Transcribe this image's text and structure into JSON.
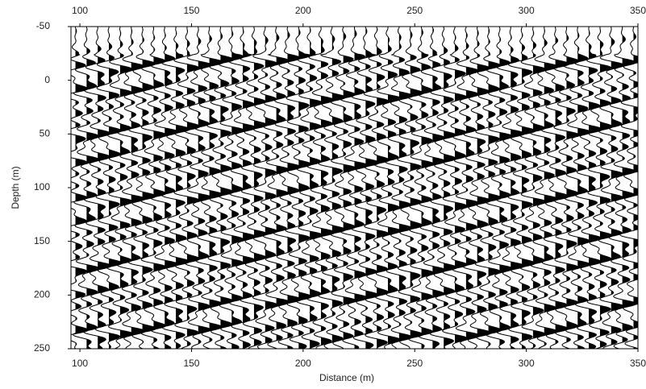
{
  "chart_data": {
    "type": "seismic-wiggle",
    "xlabel": "Distance (m)",
    "ylabel": "Depth (m)",
    "x": [
      98,
      103,
      108,
      113,
      118,
      123,
      128,
      133,
      138,
      143,
      148,
      153,
      158,
      163,
      168,
      173,
      178,
      183,
      188,
      193,
      198,
      203,
      208,
      213,
      218,
      223,
      228,
      233,
      238,
      243,
      248,
      253,
      258,
      263,
      268,
      273,
      278,
      283,
      288,
      293,
      298,
      303,
      308,
      313,
      318,
      323,
      328,
      333,
      338,
      343,
      348
    ],
    "xlim": [
      96,
      350
    ],
    "xticks": [
      100,
      150,
      200,
      250,
      300,
      350
    ],
    "ylim": [
      -50,
      250
    ],
    "yticks": [
      -50,
      0,
      50,
      100,
      150,
      200,
      250
    ],
    "color": "#000000"
  }
}
